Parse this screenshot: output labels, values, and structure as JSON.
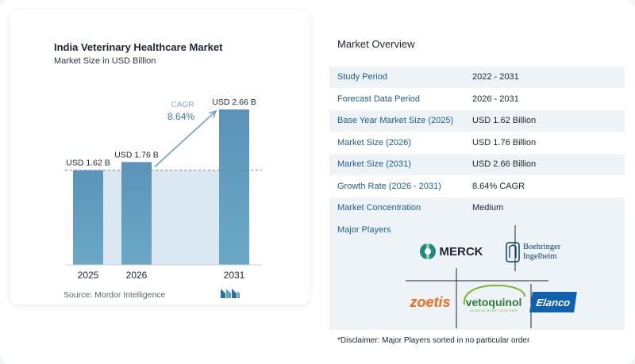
{
  "chart_data": {
    "type": "bar",
    "title": "India Veterinary Healthcare Market",
    "subtitle": "Market Size in USD Billion",
    "categories": [
      "2025",
      "2026",
      "2031"
    ],
    "values": [
      1.62,
      1.76,
      2.66
    ],
    "data_labels": [
      "USD 1.62 B",
      "USD 1.76 B",
      "USD 2.66 B"
    ],
    "ylim": [
      0,
      2.66
    ],
    "cagr_label": "CAGR",
    "cagr_value": "8.64%",
    "bar_color": "#6aa8c6",
    "band_color": "#dbe8f1",
    "arrow_color": "#7ea7c7"
  },
  "source": "Source:  Mordor Intelligence",
  "overview": {
    "title": "Market Overview",
    "rows": [
      {
        "label": "Study Period",
        "value": "2022 - 2031"
      },
      {
        "label": "Forecast Data Period",
        "value": "2026 - 2031"
      },
      {
        "label": "Base Year Market Size (2025)",
        "value": "USD 1.62 Billion"
      },
      {
        "label": "Market Size (2026)",
        "value": "USD 1.76 Billion"
      },
      {
        "label": "Market Size (2031)",
        "value": "USD 2.66 Billion"
      },
      {
        "label": "Growth Rate (2026 - 2031)",
        "value": "8.64% CAGR"
      },
      {
        "label": "Market Concentration",
        "value": "Medium"
      }
    ],
    "major_players_title": "Major Players",
    "players": [
      "MERCK",
      "Boehringer Ingelheim",
      "zoetis",
      "vetoquinol",
      "Elanco"
    ],
    "vetoquinol_tagline": "ACHIEVE MORE TOGETHER"
  },
  "disclaimer": "*Disclaimer: Major Players sorted in no particular order"
}
